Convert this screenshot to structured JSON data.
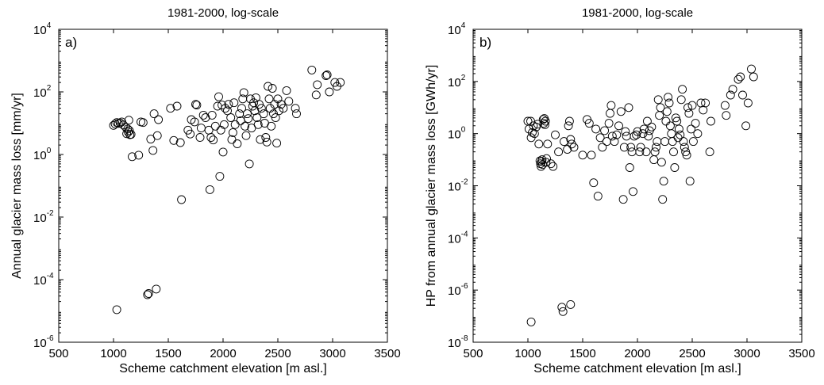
{
  "chart_data": [
    {
      "type": "scatter",
      "title": "1981-2000, log-scale",
      "panel_label": "a)",
      "xlabel": "Scheme catchment elevation [m asl.]",
      "ylabel": "Annual glacier mass loss [mm/yr]",
      "xlim": [
        500,
        3500
      ],
      "ylim": [
        1e-06,
        10000.0
      ],
      "yscale": "log",
      "xticks": [
        500,
        1000,
        1500,
        2000,
        2500,
        3000,
        3500
      ],
      "yticks": [
        {
          "base": "10",
          "exp": "-6",
          "value": 1e-06
        },
        {
          "base": "10",
          "exp": "-4",
          "value": 0.0001
        },
        {
          "base": "10",
          "exp": "-2",
          "value": 0.01
        },
        {
          "base": "10",
          "exp": "0",
          "value": 1
        },
        {
          "base": "10",
          "exp": "2",
          "value": 100
        },
        {
          "base": "10",
          "exp": "4",
          "value": 10000.0
        }
      ],
      "grid": false,
      "marker": "open-circle",
      "points": [
        [
          1000,
          8.5
        ],
        [
          1015,
          9.5
        ],
        [
          1030,
          10.5
        ],
        [
          1045,
          9.8
        ],
        [
          1060,
          10.2
        ],
        [
          1075,
          11
        ],
        [
          1090,
          8.8
        ],
        [
          1110,
          7.5
        ],
        [
          1120,
          4.6
        ],
        [
          1130,
          6.5
        ],
        [
          1135,
          5.2
        ],
        [
          1145,
          5.8
        ],
        [
          1150,
          4.3
        ],
        [
          1160,
          4.4
        ],
        [
          1170,
          0.85
        ],
        [
          1140,
          12.5
        ],
        [
          1230,
          0.95
        ],
        [
          1250,
          11
        ],
        [
          1270,
          10.5
        ],
        [
          1340,
          3.1
        ],
        [
          1360,
          1.35
        ],
        [
          1370,
          20
        ],
        [
          1400,
          4.0
        ],
        [
          1410,
          13
        ],
        [
          1520,
          30
        ],
        [
          1550,
          2.8
        ],
        [
          1580,
          35
        ],
        [
          1610,
          2.4
        ],
        [
          1620,
          0.036
        ],
        [
          1680,
          6
        ],
        [
          1700,
          4.5
        ],
        [
          1710,
          13
        ],
        [
          1740,
          11
        ],
        [
          1750,
          40
        ],
        [
          1760,
          38
        ],
        [
          1790,
          3.5
        ],
        [
          1800,
          7
        ],
        [
          1820,
          18
        ],
        [
          1840,
          15
        ],
        [
          1870,
          6
        ],
        [
          1880,
          0.075
        ],
        [
          1890,
          3.5
        ],
        [
          1900,
          18
        ],
        [
          1910,
          2.9
        ],
        [
          1930,
          8
        ],
        [
          1950,
          35
        ],
        [
          1960,
          70
        ],
        [
          1970,
          0.2
        ],
        [
          1980,
          6
        ],
        [
          1990,
          38
        ],
        [
          2000,
          1.2
        ],
        [
          2010,
          9
        ],
        [
          2020,
          30
        ],
        [
          2040,
          25
        ],
        [
          2050,
          40
        ],
        [
          2070,
          15
        ],
        [
          2080,
          3
        ],
        [
          2090,
          5
        ],
        [
          2100,
          45
        ],
        [
          2110,
          9
        ],
        [
          2130,
          2.2
        ],
        [
          2150,
          20
        ],
        [
          2160,
          12
        ],
        [
          2170,
          30
        ],
        [
          2180,
          60
        ],
        [
          2190,
          95
        ],
        [
          2200,
          8
        ],
        [
          2210,
          4
        ],
        [
          2220,
          20
        ],
        [
          2230,
          14
        ],
        [
          2240,
          0.5
        ],
        [
          2250,
          60
        ],
        [
          2260,
          7
        ],
        [
          2270,
          35
        ],
        [
          2280,
          45
        ],
        [
          2290,
          25
        ],
        [
          2300,
          65
        ],
        [
          2310,
          15
        ],
        [
          2320,
          9
        ],
        [
          2330,
          40
        ],
        [
          2340,
          3
        ],
        [
          2350,
          30
        ],
        [
          2370,
          20
        ],
        [
          2380,
          10
        ],
        [
          2390,
          3.5
        ],
        [
          2400,
          2.5
        ],
        [
          2410,
          150
        ],
        [
          2420,
          60
        ],
        [
          2430,
          30
        ],
        [
          2440,
          8
        ],
        [
          2450,
          130
        ],
        [
          2460,
          20
        ],
        [
          2470,
          40
        ],
        [
          2480,
          15
        ],
        [
          2490,
          2.3
        ],
        [
          2500,
          60
        ],
        [
          2510,
          25
        ],
        [
          2530,
          40
        ],
        [
          2550,
          30
        ],
        [
          2580,
          110
        ],
        [
          2600,
          50
        ],
        [
          2660,
          30
        ],
        [
          2670,
          20
        ],
        [
          2810,
          500
        ],
        [
          2850,
          80
        ],
        [
          2860,
          170
        ],
        [
          2940,
          330
        ],
        [
          2950,
          350
        ],
        [
          2970,
          100
        ],
        [
          3020,
          200
        ],
        [
          3040,
          150
        ],
        [
          3070,
          200
        ],
        [
          1030,
          1.1e-05
        ],
        [
          1310,
          3.3e-05
        ],
        [
          1320,
          3.6e-05
        ],
        [
          1390,
          5e-05
        ]
      ]
    },
    {
      "type": "scatter",
      "title": "1981-2000, log-scale",
      "panel_label": "b)",
      "xlabel": "Scheme catchment elevation [m asl.]",
      "ylabel": "HP from annual glacier mass loss [GWh/yr]",
      "xlim": [
        500,
        3500
      ],
      "ylim": [
        1e-08,
        10000.0
      ],
      "yscale": "log",
      "xticks": [
        500,
        1000,
        1500,
        2000,
        2500,
        3000,
        3500
      ],
      "yticks": [
        {
          "base": "10",
          "exp": "-8",
          "value": 1e-08
        },
        {
          "base": "10",
          "exp": "-6",
          "value": 1e-06
        },
        {
          "base": "10",
          "exp": "-4",
          "value": 0.0001
        },
        {
          "base": "10",
          "exp": "-2",
          "value": 0.01
        },
        {
          "base": "10",
          "exp": "0",
          "value": 1
        },
        {
          "base": "10",
          "exp": "2",
          "value": 100
        },
        {
          "base": "10",
          "exp": "4",
          "value": 10000.0
        }
      ],
      "grid": false,
      "marker": "open-circle",
      "points": [
        [
          1000,
          3
        ],
        [
          1010,
          1.5
        ],
        [
          1025,
          3
        ],
        [
          1030,
          0.7
        ],
        [
          1040,
          1.1
        ],
        [
          1050,
          2
        ],
        [
          1060,
          1
        ],
        [
          1075,
          1.8
        ],
        [
          1090,
          2.3
        ],
        [
          1100,
          0.4
        ],
        [
          1110,
          0.09
        ],
        [
          1115,
          0.07
        ],
        [
          1120,
          0.055
        ],
        [
          1125,
          0.085
        ],
        [
          1130,
          0.1
        ],
        [
          1135,
          0.065
        ],
        [
          1140,
          3.5
        ],
        [
          1145,
          2.5
        ],
        [
          1150,
          3.8
        ],
        [
          1155,
          2.2
        ],
        [
          1160,
          3
        ],
        [
          1165,
          0.08
        ],
        [
          1170,
          0.11
        ],
        [
          1180,
          0.4
        ],
        [
          1210,
          0.07
        ],
        [
          1230,
          0.055
        ],
        [
          1250,
          0.9
        ],
        [
          1280,
          0.2
        ],
        [
          1330,
          0.5
        ],
        [
          1360,
          0.25
        ],
        [
          1370,
          2
        ],
        [
          1380,
          3
        ],
        [
          1390,
          0.6
        ],
        [
          1400,
          0.4
        ],
        [
          1420,
          0.3
        ],
        [
          1500,
          0.15
        ],
        [
          1540,
          3.5
        ],
        [
          1560,
          2.5
        ],
        [
          1580,
          0.15
        ],
        [
          1600,
          0.013
        ],
        [
          1620,
          1.5
        ],
        [
          1640,
          0.004
        ],
        [
          1660,
          0.7
        ],
        [
          1680,
          0.3
        ],
        [
          1700,
          1.3
        ],
        [
          1720,
          0.5
        ],
        [
          1740,
          2.5
        ],
        [
          1750,
          6
        ],
        [
          1760,
          12
        ],
        [
          1770,
          0.8
        ],
        [
          1790,
          0.5
        ],
        [
          1810,
          0.9
        ],
        [
          1830,
          2
        ],
        [
          1850,
          7
        ],
        [
          1870,
          0.003
        ],
        [
          1880,
          0.3
        ],
        [
          1890,
          1.2
        ],
        [
          1900,
          0.8
        ],
        [
          1920,
          10
        ],
        [
          1930,
          0.05
        ],
        [
          1940,
          0.3
        ],
        [
          1950,
          0.2
        ],
        [
          1960,
          0.006
        ],
        [
          1970,
          0.8
        ],
        [
          1990,
          0.9
        ],
        [
          2000,
          1.2
        ],
        [
          2020,
          0.2
        ],
        [
          2030,
          0.3
        ],
        [
          2050,
          1
        ],
        [
          2060,
          1.5
        ],
        [
          2080,
          0.2
        ],
        [
          2090,
          3
        ],
        [
          2100,
          0.8
        ],
        [
          2110,
          1.3
        ],
        [
          2130,
          1.8
        ],
        [
          2150,
          0.1
        ],
        [
          2160,
          0.2
        ],
        [
          2170,
          0.3
        ],
        [
          2180,
          0.5
        ],
        [
          2190,
          20
        ],
        [
          2200,
          5
        ],
        [
          2210,
          10
        ],
        [
          2220,
          0.08
        ],
        [
          2230,
          0.003
        ],
        [
          2240,
          0.015
        ],
        [
          2250,
          0.5
        ],
        [
          2260,
          3
        ],
        [
          2270,
          7
        ],
        [
          2280,
          25
        ],
        [
          2290,
          15
        ],
        [
          2300,
          2
        ],
        [
          2310,
          1
        ],
        [
          2320,
          0.5
        ],
        [
          2330,
          0.2
        ],
        [
          2340,
          0.05
        ],
        [
          2350,
          4
        ],
        [
          2360,
          3
        ],
        [
          2370,
          0.7
        ],
        [
          2380,
          1.5
        ],
        [
          2390,
          0.9
        ],
        [
          2400,
          20
        ],
        [
          2410,
          50
        ],
        [
          2420,
          0.5
        ],
        [
          2430,
          0.3
        ],
        [
          2440,
          0.2
        ],
        [
          2450,
          0.15
        ],
        [
          2460,
          10
        ],
        [
          2470,
          6
        ],
        [
          2480,
          0.015
        ],
        [
          2490,
          1.5
        ],
        [
          2500,
          12
        ],
        [
          2510,
          0.5
        ],
        [
          2530,
          2.5
        ],
        [
          2550,
          1
        ],
        [
          2580,
          15
        ],
        [
          2600,
          8
        ],
        [
          2620,
          15
        ],
        [
          2660,
          0.2
        ],
        [
          2670,
          3
        ],
        [
          2800,
          12
        ],
        [
          2810,
          5
        ],
        [
          2850,
          30
        ],
        [
          2870,
          50
        ],
        [
          2920,
          120
        ],
        [
          2940,
          150
        ],
        [
          2960,
          30
        ],
        [
          2990,
          2
        ],
        [
          3010,
          15
        ],
        [
          3040,
          300
        ],
        [
          3060,
          150
        ],
        [
          1030,
          6e-08
        ],
        [
          1310,
          2.2e-07
        ],
        [
          1320,
          1.5e-07
        ],
        [
          1390,
          2.8e-07
        ]
      ]
    }
  ]
}
